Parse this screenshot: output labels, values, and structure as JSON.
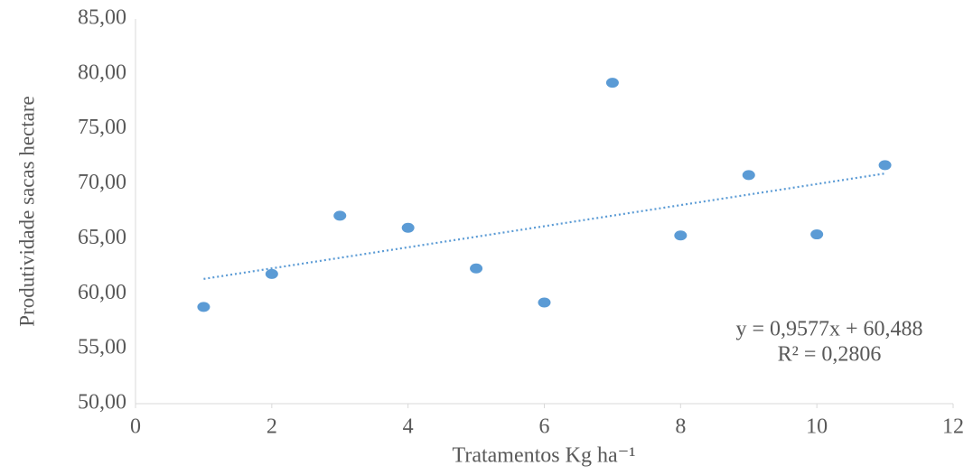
{
  "chart_data": {
    "type": "scatter",
    "x_label": "Tratamentos Kg ha⁻¹",
    "y_label": "Produtividade sacas hectare",
    "series": [
      {
        "color": "#5b9bd5",
        "x": [
          1,
          2,
          3,
          4,
          5,
          6,
          7,
          8,
          9,
          10,
          11
        ],
        "values": [
          58.8,
          61.8,
          67.1,
          66.0,
          62.3,
          59.2,
          79.2,
          65.3,
          70.8,
          65.4,
          71.7
        ]
      }
    ],
    "trendline": {
      "color": "#5b9bd5",
      "equation": "y = 0,9577x + 60,488",
      "r_squared": "R² = 0,2806"
    },
    "xlim": [
      0,
      12
    ],
    "xticks": [
      0,
      2,
      4,
      6,
      8,
      10,
      12
    ],
    "ylim": [
      50,
      85
    ],
    "yticks": [
      {
        "value": 50,
        "label": "50,00"
      },
      {
        "value": 55,
        "label": "55,00"
      },
      {
        "value": 60,
        "label": "60,00"
      },
      {
        "value": 65,
        "label": "65,00"
      },
      {
        "value": 70,
        "label": "70,00"
      },
      {
        "value": 75,
        "label": "75,00"
      },
      {
        "value": 80,
        "label": "80,00"
      },
      {
        "value": 85,
        "label": "85,00"
      }
    ],
    "grid": false
  }
}
